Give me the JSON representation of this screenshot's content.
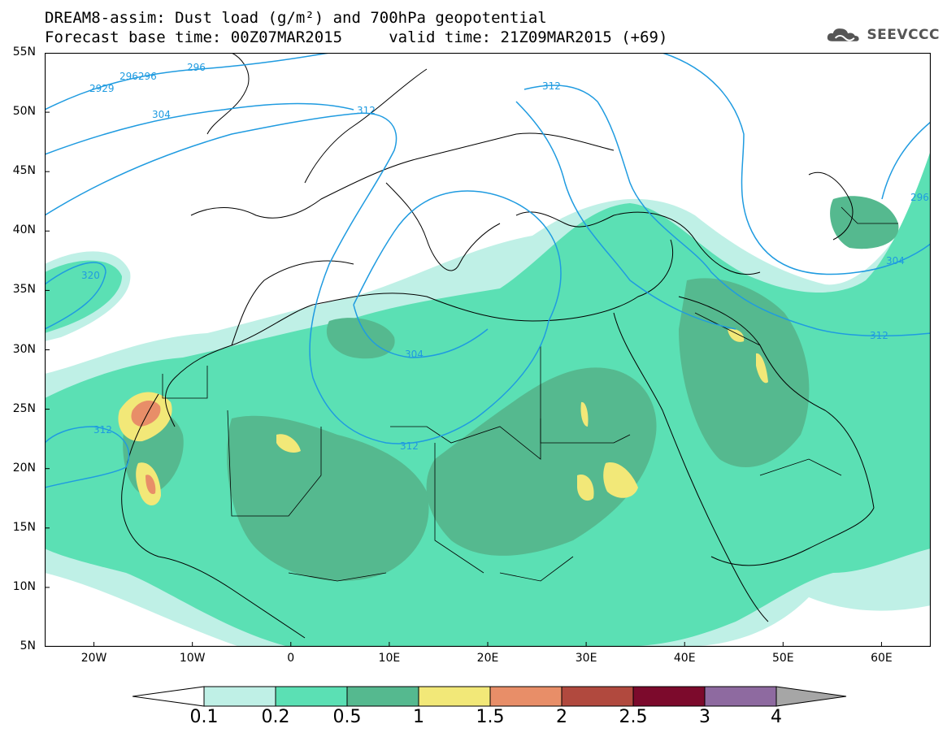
{
  "title": {
    "line1": "DREAM8-assim: Dust load (g/m²) and 700hPa geopotential",
    "line2": "Forecast base time: 00Z07MAR2015     valid time: 21Z09MAR2015 (+69)"
  },
  "logo": {
    "text": "SEEVCCC",
    "icon": "cloud-logo-icon"
  },
  "axes": {
    "lat_labels": [
      "55N",
      "50N",
      "45N",
      "40N",
      "35N",
      "30N",
      "25N",
      "20N",
      "15N",
      "10N",
      "5N"
    ],
    "lat_values": [
      55,
      50,
      45,
      40,
      35,
      30,
      25,
      20,
      15,
      10,
      5
    ],
    "lon_labels": [
      "20W",
      "10W",
      "0",
      "10E",
      "20E",
      "30E",
      "40E",
      "50E",
      "60E"
    ],
    "lon_values": [
      -20,
      -10,
      0,
      10,
      20,
      30,
      40,
      50,
      60
    ],
    "lon_range": [
      -25,
      65
    ],
    "lat_range": [
      5,
      55
    ]
  },
  "contours": {
    "labels": [
      "2929",
      "296296",
      "296",
      "304",
      "312",
      "312",
      "304",
      "312",
      "312",
      "304",
      "312",
      "296",
      "320"
    ]
  },
  "legend": {
    "labels": [
      "0.1",
      "0.2",
      "0.5",
      "1",
      "1.5",
      "2",
      "2.5",
      "3",
      "4"
    ],
    "colors": [
      "#ffffff",
      "#bff0e6",
      "#5be0b4",
      "#55b98f",
      "#f2e878",
      "#e88e68",
      "#b1493e",
      "#7c0a2c",
      "#8e6aa0",
      "#a6a6a6"
    ]
  }
}
